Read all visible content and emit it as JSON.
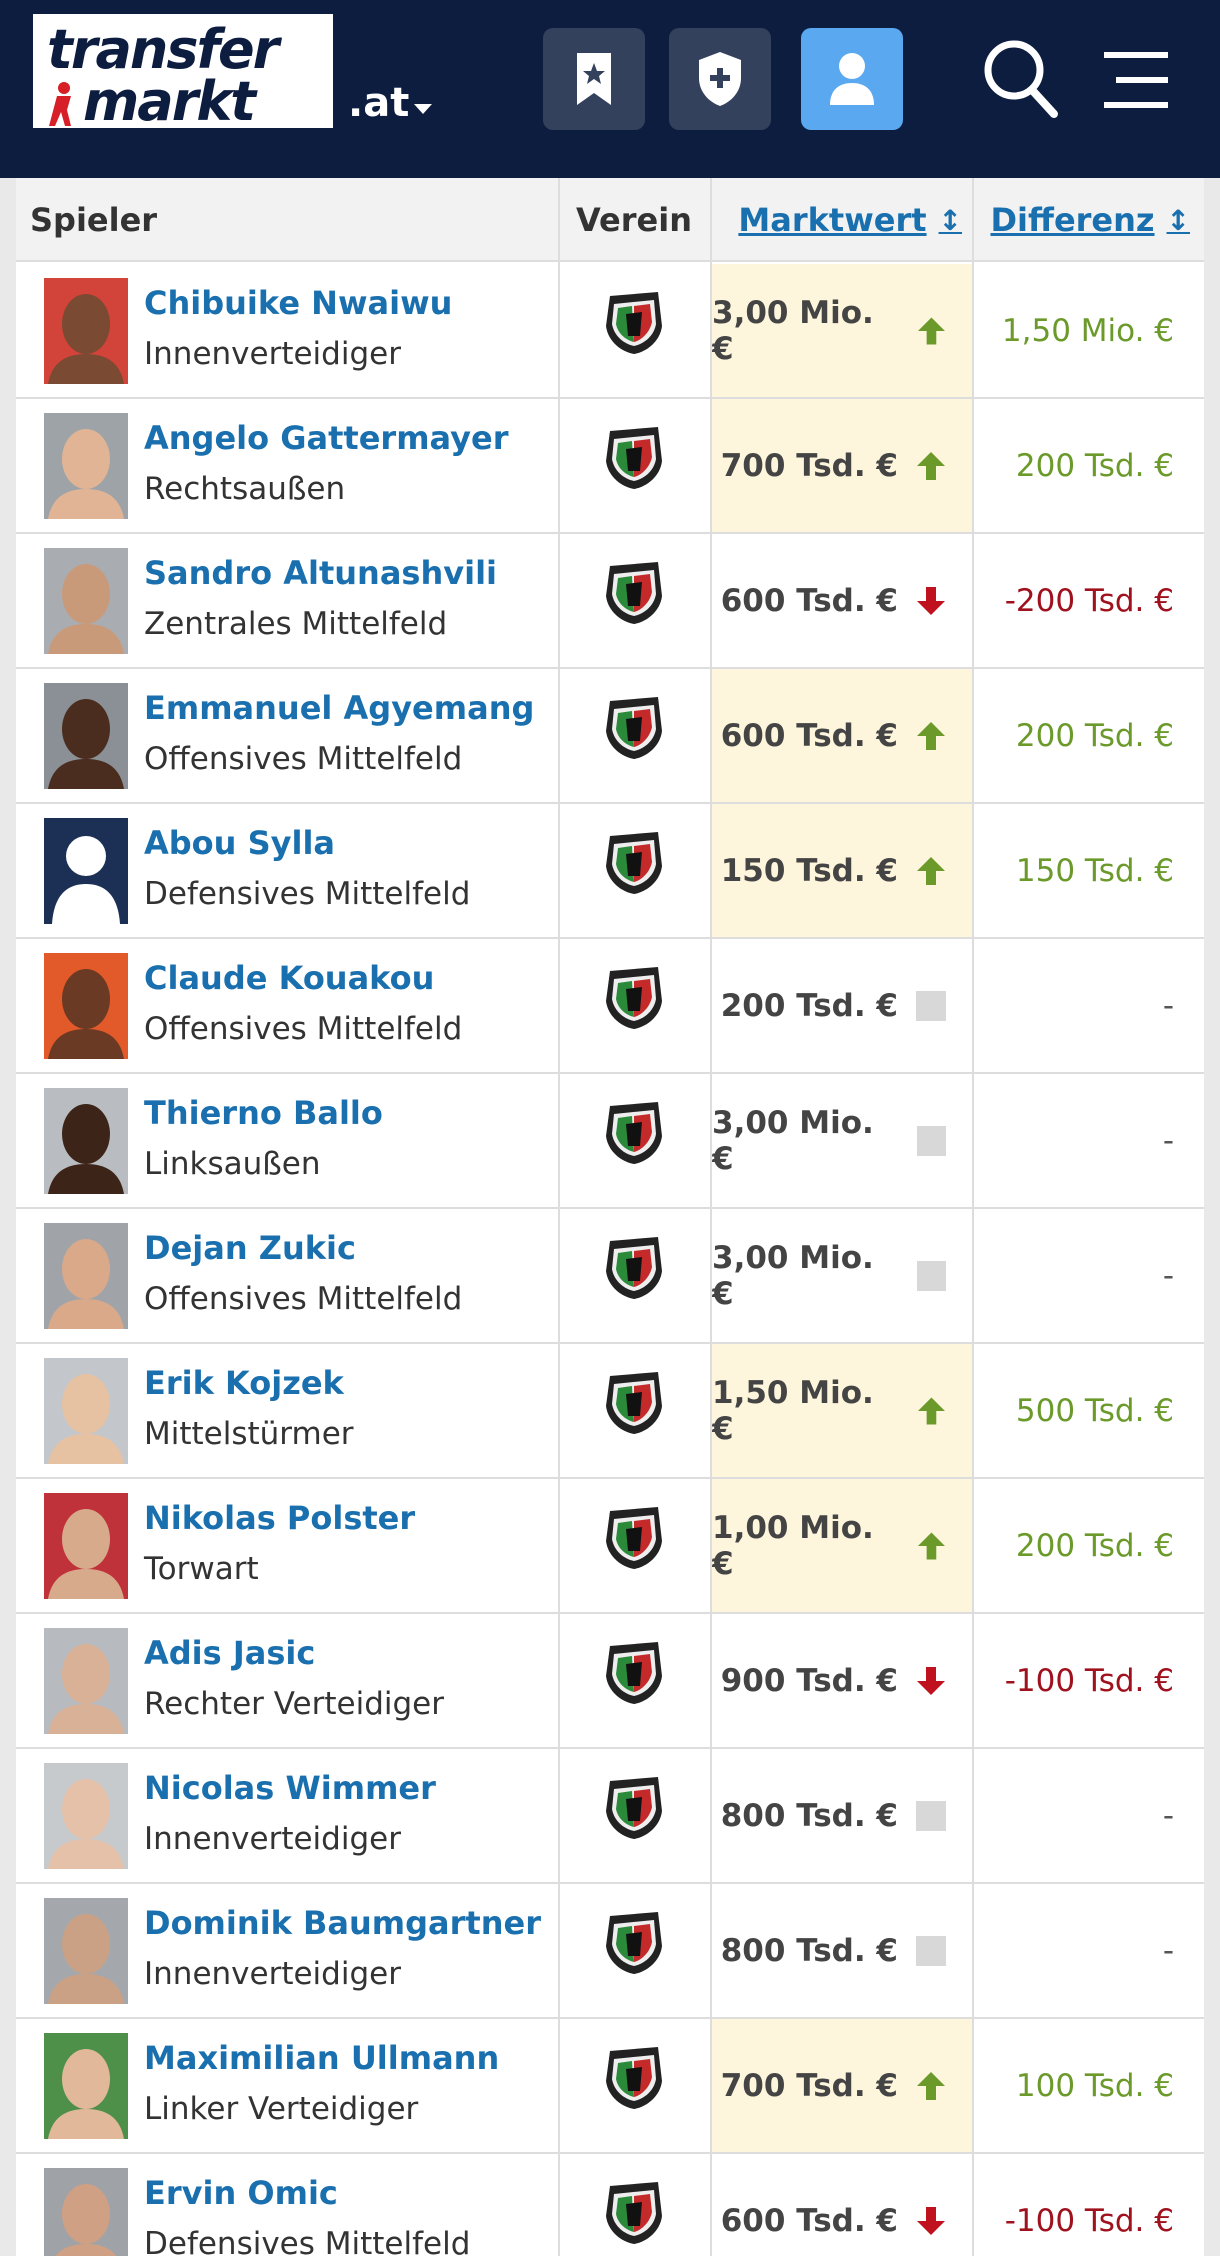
{
  "header": {
    "logo_line1": "transfer",
    "logo_line2": "markt",
    "domain": ".at",
    "buttons": [
      {
        "name": "watchlist",
        "icon": "bookmark-star-icon"
      },
      {
        "name": "clubs",
        "icon": "shield-plus-icon"
      },
      {
        "name": "profile",
        "icon": "user-icon"
      }
    ],
    "search_icon": "search-icon",
    "menu_icon": "hamburger-menu-icon"
  },
  "table": {
    "columns": {
      "spieler": "Spieler",
      "verein": "Verein",
      "marktwert": "Marktwert",
      "differenz": "Differenz",
      "sort_glyph": "↕"
    },
    "rows": [
      {
        "name": "Chibuike Nwaiwu",
        "position": "Innenverteidiger",
        "value": "3,00 Mio. €",
        "trend": "up",
        "diff": "1,50 Mio. €"
      },
      {
        "name": "Angelo Gattermayer",
        "position": "Rechtsaußen",
        "value": "700 Tsd. €",
        "trend": "up",
        "diff": "200 Tsd. €"
      },
      {
        "name": "Sandro Altunashvili",
        "position": "Zentrales Mittelfeld",
        "value": "600 Tsd. €",
        "trend": "down",
        "diff": "-200 Tsd. €"
      },
      {
        "name": "Emmanuel Agyemang",
        "position": "Offensives Mittelfeld",
        "value": "600 Tsd. €",
        "trend": "up",
        "diff": "200 Tsd. €"
      },
      {
        "name": "Abou Sylla",
        "position": "Defensives Mittelfeld",
        "value": "150 Tsd. €",
        "trend": "up",
        "diff": "150 Tsd. €"
      },
      {
        "name": "Claude Kouakou",
        "position": "Offensives Mittelfeld",
        "value": "200 Tsd. €",
        "trend": "none",
        "diff": "-"
      },
      {
        "name": "Thierno Ballo",
        "position": "Linksaußen",
        "value": "3,00 Mio. €",
        "trend": "none",
        "diff": "-"
      },
      {
        "name": "Dejan Zukic",
        "position": "Offensives Mittelfeld",
        "value": "3,00 Mio. €",
        "trend": "none",
        "diff": "-"
      },
      {
        "name": "Erik Kojzek",
        "position": "Mittelstürmer",
        "value": "1,50 Mio. €",
        "trend": "up",
        "diff": "500 Tsd. €"
      },
      {
        "name": "Nikolas Polster",
        "position": "Torwart",
        "value": "1,00 Mio. €",
        "trend": "up",
        "diff": "200 Tsd. €"
      },
      {
        "name": "Adis Jasic",
        "position": "Rechter Verteidiger",
        "value": "900 Tsd. €",
        "trend": "down",
        "diff": "-100 Tsd. €"
      },
      {
        "name": "Nicolas Wimmer",
        "position": "Innenverteidiger",
        "value": "800 Tsd. €",
        "trend": "none",
        "diff": "-"
      },
      {
        "name": "Dominik Baumgartner",
        "position": "Innenverteidiger",
        "value": "800 Tsd. €",
        "trend": "none",
        "diff": "-"
      },
      {
        "name": "Maximilian Ullmann",
        "position": "Linker Verteidiger",
        "value": "700 Tsd. €",
        "trend": "up",
        "diff": "100 Tsd. €"
      },
      {
        "name": "Ervin Omic",
        "position": "Defensives Mittelfeld",
        "value": "600 Tsd. €",
        "trend": "down",
        "diff": "-100 Tsd. €"
      }
    ]
  },
  "colors": {
    "header_bg": "#0c1d40",
    "link_blue": "#1a6fae",
    "positive": "#6b9a2b",
    "negative": "#a0111e",
    "highlight_bg": "#fdf6dc",
    "profile_button": "#5aa8f0"
  }
}
